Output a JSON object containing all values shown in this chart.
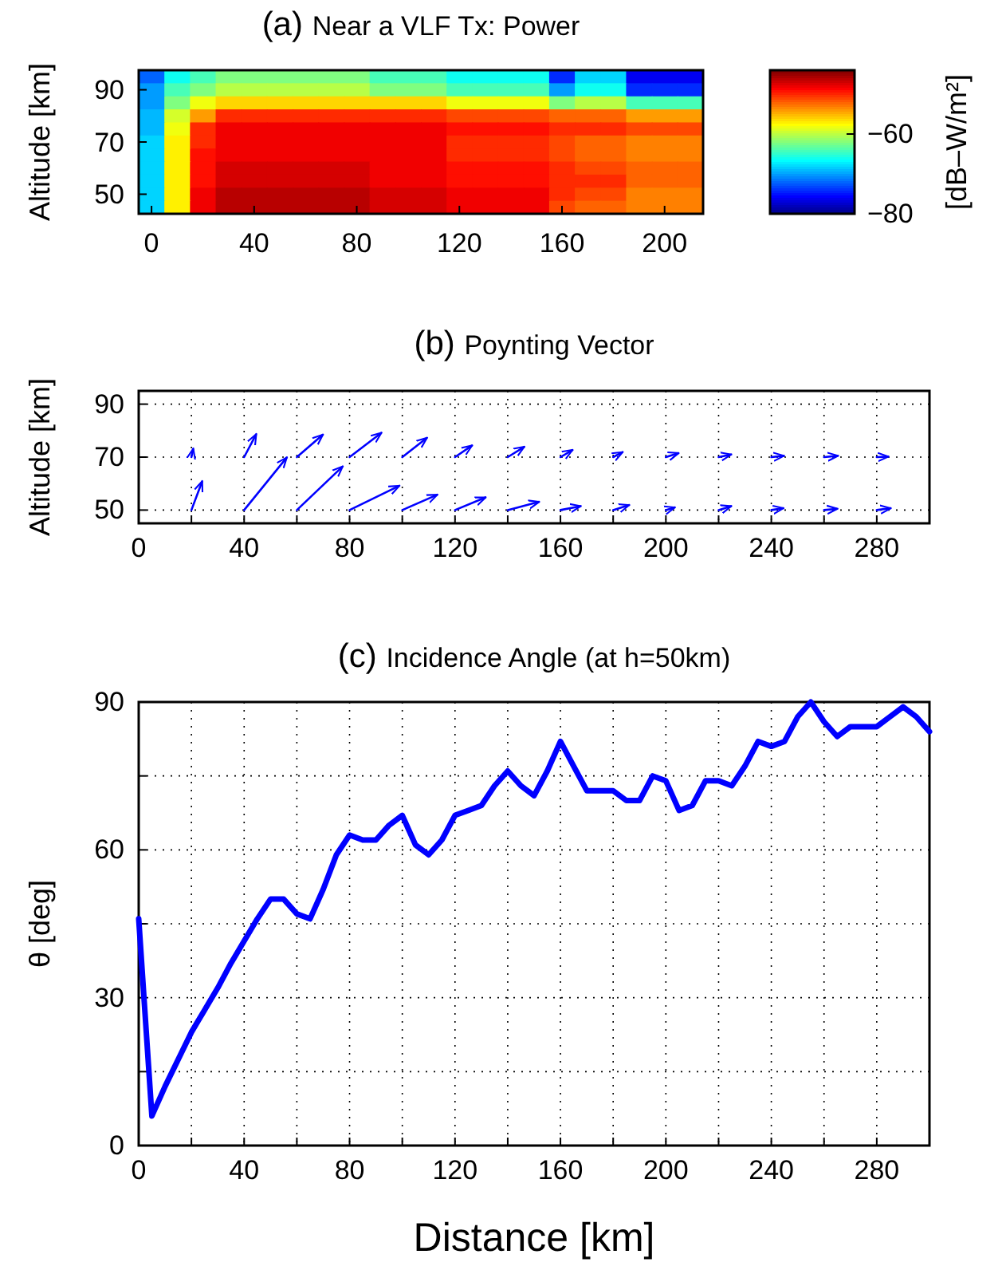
{
  "chart_data": [
    {
      "type": "heatmap",
      "title": "(a) Near a VLF Tx: Power",
      "ylabel": "Altitude [km]",
      "clabel": "[dB–W/m²]",
      "categories": [
        "0",
        null,
        null,
        null,
        "40",
        null,
        null,
        null,
        "80",
        null,
        null,
        null,
        "120",
        null,
        null,
        null,
        "160",
        null,
        null,
        null,
        "200",
        null
      ],
      "y_categories": [
        null,
        "90",
        null,
        null,
        null,
        "70",
        null,
        null,
        null,
        "50",
        null
      ],
      "cells": [
        [
          -72,
          -66,
          -64,
          -62,
          -62,
          -62,
          -62,
          -62,
          -62,
          -64,
          -64,
          -64,
          -66,
          -66,
          -66,
          -66,
          -74,
          -68,
          -68,
          -76,
          -76,
          -76
        ],
        [
          -70,
          -64,
          -62,
          -60,
          -60,
          -60,
          -60,
          -60,
          -60,
          -62,
          -62,
          -62,
          -64,
          -64,
          -64,
          -64,
          -70,
          -66,
          -66,
          -74,
          -74,
          -74
        ],
        [
          -70,
          -62,
          -58,
          -56,
          -56,
          -56,
          -56,
          -56,
          -56,
          -56,
          -56,
          -56,
          -58,
          -58,
          -58,
          -58,
          -62,
          -60,
          -60,
          -64,
          -64,
          -64
        ],
        [
          -69,
          -59,
          -54,
          -50,
          -50,
          -50,
          -50,
          -50,
          -50,
          -50,
          -50,
          -50,
          -51,
          -51,
          -51,
          -51,
          -52,
          -52,
          -52,
          -54,
          -54,
          -54
        ],
        [
          -69,
          -58,
          -50,
          -48,
          -48,
          -48,
          -48,
          -48,
          -48,
          -48,
          -48,
          -48,
          -49,
          -49,
          -49,
          -49,
          -50,
          -50,
          -50,
          -51,
          -51,
          -51
        ],
        [
          -68,
          -57,
          -50,
          -48,
          -48,
          -48,
          -48,
          -48,
          -48,
          -48,
          -48,
          -48,
          -50,
          -50,
          -50,
          -50,
          -51,
          -52,
          -52,
          -53,
          -53,
          -53
        ],
        [
          -68,
          -57,
          -49,
          -48,
          -48,
          -48,
          -48,
          -48,
          -48,
          -48,
          -48,
          -48,
          -50,
          -50,
          -50,
          -50,
          -51,
          -52,
          -52,
          -53,
          -53,
          -53
        ],
        [
          -68,
          -57,
          -49,
          -47,
          -47,
          -47,
          -47,
          -47,
          -47,
          -48,
          -48,
          -48,
          -49,
          -49,
          -49,
          -49,
          -50,
          -51,
          -51,
          -52,
          -52,
          -52
        ],
        [
          -68,
          -57,
          -49,
          -47,
          -47,
          -47,
          -47,
          -47,
          -47,
          -48,
          -48,
          -48,
          -49,
          -49,
          -49,
          -49,
          -50,
          -50,
          -50,
          -52,
          -52,
          -52
        ],
        [
          -68,
          -57,
          -48,
          -46,
          -46,
          -46,
          -46,
          -46,
          -46,
          -47,
          -47,
          -47,
          -48,
          -48,
          -48,
          -48,
          -50,
          -51,
          -51,
          -53,
          -53,
          -53
        ],
        [
          -68,
          -57,
          -48,
          -46,
          -46,
          -46,
          -46,
          -46,
          -46,
          -47,
          -47,
          -47,
          -48,
          -48,
          -48,
          -48,
          -51,
          -52,
          -52,
          -53,
          -53,
          -53
        ]
      ],
      "clim": [
        -80,
        -44
      ],
      "cticks": [
        -80,
        -60
      ]
    },
    {
      "type": "line",
      "title": "(b) Poynting Vector",
      "ylabel": "Altitude [km]",
      "xlim": [
        0,
        300
      ],
      "xticks": [
        0,
        {
          "value": 20,
          "label": null
        },
        40,
        {
          "value": 60,
          "label": null
        },
        80,
        {
          "value": 100,
          "label": null
        },
        120,
        {
          "value": 140,
          "label": null
        },
        160,
        {
          "value": 180,
          "label": null
        },
        200,
        {
          "value": 220,
          "label": null
        },
        240,
        {
          "value": 260,
          "label": null
        },
        280,
        {
          "value": 300,
          "label": null
        }
      ],
      "ylim": [
        45,
        95
      ],
      "yticks": [
        50,
        70,
        90
      ],
      "grid": true,
      "series": [
        {
          "color": "#0000ff",
          "x": [
            20,
            20.7
          ],
          "values": [
            70,
            73.2
          ]
        },
        {
          "color": "#0000ff",
          "x": [
            40,
            44.6
          ],
          "values": [
            70,
            78.7
          ]
        },
        {
          "color": "#0000ff",
          "x": [
            60,
            69.9
          ],
          "values": [
            70,
            78.5
          ]
        },
        {
          "color": "#0000ff",
          "x": [
            80,
            92.1
          ],
          "values": [
            70,
            79.2
          ]
        },
        {
          "color": "#0000ff",
          "x": [
            100,
            109.4
          ],
          "values": [
            70,
            77.3
          ]
        },
        {
          "color": "#0000ff",
          "x": [
            120,
            126.5
          ],
          "values": [
            70,
            74.4
          ]
        },
        {
          "color": "#0000ff",
          "x": [
            140,
            146.3
          ],
          "values": [
            70,
            73.9
          ]
        },
        {
          "color": "#0000ff",
          "x": [
            160,
            164.6
          ],
          "values": [
            70,
            72.7
          ]
        },
        {
          "color": "#0000ff",
          "x": [
            180,
            183.6
          ],
          "values": [
            70,
            71.9
          ]
        },
        {
          "color": "#0000ff",
          "x": [
            200,
            204.8
          ],
          "values": [
            70,
            71.5
          ]
        },
        {
          "color": "#0000ff",
          "x": [
            220,
            224.8
          ],
          "values": [
            70,
            71
          ]
        },
        {
          "color": "#0000ff",
          "x": [
            240,
            244.8
          ],
          "values": [
            70,
            70.5
          ]
        },
        {
          "color": "#0000ff",
          "x": [
            260,
            265.3
          ],
          "values": [
            70,
            70.5
          ]
        },
        {
          "color": "#0000ff",
          "x": [
            280,
            284.4
          ],
          "values": [
            70,
            70.2
          ]
        },
        {
          "color": "#0000ff",
          "x": [
            20,
            24.1
          ],
          "values": [
            50,
            60.9
          ]
        },
        {
          "color": "#0000ff",
          "x": [
            40,
            56.2
          ],
          "values": [
            50,
            69.9
          ]
        },
        {
          "color": "#0000ff",
          "x": [
            60,
            77.4
          ],
          "values": [
            50,
            66.5
          ]
        },
        {
          "color": "#0000ff",
          "x": [
            80,
            98.9
          ],
          "values": [
            50,
            59.2
          ]
        },
        {
          "color": "#0000ff",
          "x": [
            100,
            113.3
          ],
          "values": [
            50,
            55.8
          ]
        },
        {
          "color": "#0000ff",
          "x": [
            120,
            131.6
          ],
          "values": [
            50,
            54.8
          ]
        },
        {
          "color": "#0000ff",
          "x": [
            140,
            151.9
          ],
          "values": [
            50,
            53.1
          ]
        },
        {
          "color": "#0000ff",
          "x": [
            160,
            167.7
          ],
          "values": [
            50,
            51.5
          ]
        },
        {
          "color": "#0000ff",
          "x": [
            180,
            186.1
          ],
          "values": [
            50,
            51.9
          ]
        },
        {
          "color": "#0000ff",
          "x": [
            200,
            203.4
          ],
          "values": [
            50,
            51
          ]
        },
        {
          "color": "#0000ff",
          "x": [
            220,
            224.8
          ],
          "values": [
            50,
            51.5
          ]
        },
        {
          "color": "#0000ff",
          "x": [
            240,
            244.6
          ],
          "values": [
            50,
            50.7
          ]
        },
        {
          "color": "#0000ff",
          "x": [
            260,
            265.1
          ],
          "values": [
            50,
            50.5
          ]
        },
        {
          "color": "#0000ff",
          "x": [
            280,
            285.3
          ],
          "values": [
            50,
            50.7
          ]
        }
      ]
    },
    {
      "type": "line",
      "title": "(c) Incidence Angle (at h=50km)",
      "xlabel": "Distance [km]",
      "ylabel": "θ [deg]",
      "xlim": [
        0,
        300
      ],
      "xticks": [
        0,
        {
          "value": 20,
          "label": null
        },
        40,
        {
          "value": 60,
          "label": null
        },
        80,
        {
          "value": 100,
          "label": null
        },
        120,
        {
          "value": 140,
          "label": null
        },
        160,
        {
          "value": 180,
          "label": null
        },
        200,
        {
          "value": 220,
          "label": null
        },
        240,
        {
          "value": 260,
          "label": null
        },
        280,
        {
          "value": 300,
          "label": null
        }
      ],
      "ylim": [
        0,
        90
      ],
      "yticks": [
        0,
        {
          "value": 15,
          "label": null
        },
        30,
        {
          "value": 45,
          "label": null
        },
        60,
        {
          "value": 75,
          "label": null
        },
        90
      ],
      "grid": true,
      "x": [
        0,
        5,
        10,
        20,
        30,
        35,
        45,
        50,
        55,
        60,
        65,
        70,
        75,
        80,
        85,
        90,
        95,
        100,
        105,
        110,
        115,
        120,
        125,
        130,
        135,
        140,
        145,
        150,
        155,
        160,
        165,
        170,
        175,
        180,
        185,
        190,
        195,
        200,
        205,
        210,
        215,
        220,
        225,
        230,
        235,
        240,
        245,
        250,
        255,
        260,
        265,
        270,
        275,
        280,
        285,
        290,
        295,
        300
      ],
      "series": [
        {
          "color": "#0000ff",
          "values": [
            46,
            6,
            12,
            23,
            32,
            37,
            46,
            50,
            50,
            47,
            46,
            52,
            59,
            63,
            62,
            62,
            65,
            67,
            61,
            59,
            62,
            67,
            68,
            69,
            73,
            76,
            73,
            71,
            76,
            82,
            77,
            72,
            72,
            72,
            70,
            70,
            75,
            74,
            68,
            69,
            74,
            74,
            73,
            77,
            82,
            81,
            82,
            87,
            90,
            86,
            83,
            85,
            85,
            85,
            87,
            89,
            87,
            84
          ]
        }
      ]
    }
  ]
}
